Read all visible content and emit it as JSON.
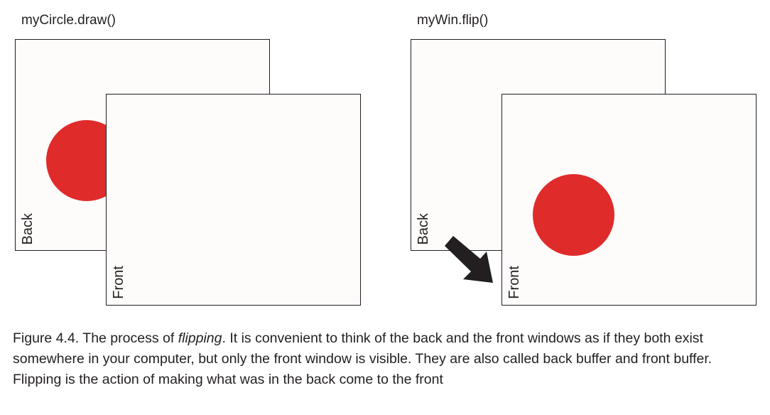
{
  "left_panel": {
    "title": "myCircle.draw()",
    "back_label": "Back",
    "front_label": "Front"
  },
  "right_panel": {
    "title": "myWin.flip()",
    "back_label": "Back",
    "front_label": "Front"
  },
  "colors": {
    "circle": "#e02b2b",
    "arrow": "#231f20",
    "window_fill": "#fdfcfb",
    "stroke": "#231f20"
  },
  "caption": {
    "figure_number": "Figure 4.4.",
    "text_before": " The process of ",
    "emphasis": "flipping",
    "text_after": ". It is convenient to think of the back and the front windows as if they both exist somewhere in your computer, but only the front window is visible. They are also called back buffer and front buffer. Flipping is the action of making what was in the back come to the front"
  }
}
